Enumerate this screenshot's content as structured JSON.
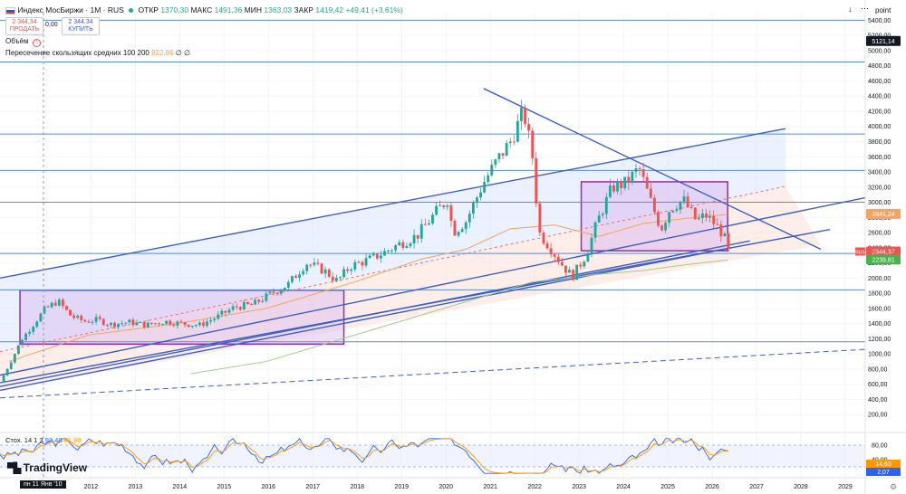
{
  "header": {
    "title": "Индекс МосБиржи · 1М · RUS",
    "ohlc_labels": {
      "open": "ОТКР",
      "high": "МАКС",
      "low": "МИН",
      "close": "ЗАКР"
    },
    "ohlc_values": {
      "open": "1370,30",
      "high": "1491,36",
      "low": "1363,03",
      "close": "1419,42",
      "change": "+49,41 (+3,61%)"
    },
    "sell_price": "2 344,34",
    "sell_label": "ПРОДАТЬ",
    "spread": "0,00",
    "buy_price": "2 344,34",
    "buy_label": "КУПИТЬ",
    "volume_label": "Объём",
    "ma_label": "Пересечение скользящих средних 100 200",
    "ma_value": "922,86",
    "ma_extra": "∅ ∅",
    "point_label": "point"
  },
  "stoch": {
    "label": "Стох. 14 1 3",
    "k": "92,48",
    "d": "91,98",
    "axis_labels": [
      "80,00",
      "40,00"
    ],
    "k_last": "14,63",
    "d_last": "2,07"
  },
  "logo_text": "TradingView",
  "crosshair_date": "пн 11 Янв '10",
  "price_badges": {
    "top": "5121,14",
    "orange": "2841,24",
    "red_tag": "RUS",
    "red": "2344,37",
    "red_sub": "8d 3h",
    "green": "2239,81"
  },
  "colors": {
    "up": "#26a69a",
    "down": "#ef5350",
    "line": "#2962ff",
    "hline": "#5b8bd0",
    "box": "#9c27b0",
    "orange": "#f7a35c",
    "green": "#9fcd8a",
    "blue_k": "#2962ff",
    "orange_d": "#ff9800"
  },
  "chart_data": {
    "type": "candlestick",
    "title": "Индекс МосБиржи · 1М",
    "x_ticks": [
      "2011",
      "2012",
      "2013",
      "2014",
      "2015",
      "2016",
      "2017",
      "2018",
      "2019",
      "2020",
      "2021",
      "2022",
      "2023",
      "2024",
      "2025",
      "2026",
      "2027",
      "2028",
      "2029"
    ],
    "y_ticks": [
      "5400,00",
      "5200,00",
      "5000,00",
      "4800,00",
      "4600,00",
      "4400,00",
      "4200,00",
      "4000,00",
      "3800,00",
      "3600,00",
      "3400,00",
      "3200,00",
      "3000,00",
      "2800,00",
      "2600,00",
      "2400,00",
      "2200,00",
      "2000,00",
      "1800,00",
      "1600,00",
      "1400,00",
      "1200,00",
      "1000,00",
      "800,00",
      "600,00",
      "400,00",
      "200,00"
    ],
    "ylim": [
      0,
      5500
    ],
    "xlim": [
      2010,
      2029.5
    ],
    "horizontal_levels": [
      5400,
      4850,
      3900,
      3420,
      3000,
      2325,
      1845,
      1160
    ],
    "series": [
      {
        "name": "MOEX",
        "t": [
          2010.0,
          2010.5,
          2011.0,
          2011.3,
          2011.6,
          2011.9,
          2012.2,
          2012.5,
          2012.9,
          2013.3,
          2013.7,
          2014.1,
          2014.5,
          2014.9,
          2015.3,
          2015.7,
          2016.1,
          2016.5,
          2016.9,
          2017.3,
          2017.6,
          2017.9,
          2018.3,
          2018.7,
          2019.0,
          2019.4,
          2019.8,
          2020.1,
          2020.2,
          2020.5,
          2020.9,
          2021.2,
          2021.5,
          2021.8,
          2022.0,
          2022.15,
          2022.4,
          2022.7,
          2022.9,
          2023.2,
          2023.5,
          2023.8,
          2024.1,
          2024.4,
          2024.7,
          2024.9,
          2025.1,
          2025.4,
          2025.7,
          2025.9,
          2026.1,
          2026.3,
          2026.42
        ],
        "values": [
          620,
          1200,
          1580,
          1700,
          1500,
          1430,
          1450,
          1390,
          1420,
          1380,
          1430,
          1400,
          1380,
          1490,
          1620,
          1650,
          1790,
          1920,
          2200,
          2100,
          1960,
          2160,
          2240,
          2350,
          2450,
          2560,
          2850,
          3050,
          2600,
          2750,
          3260,
          3550,
          3800,
          4200,
          3600,
          2600,
          2400,
          2150,
          2020,
          2300,
          2800,
          3200,
          3250,
          3450,
          2950,
          2650,
          2920,
          3030,
          2750,
          2830,
          2720,
          2580,
          2344
        ]
      }
    ]
  }
}
